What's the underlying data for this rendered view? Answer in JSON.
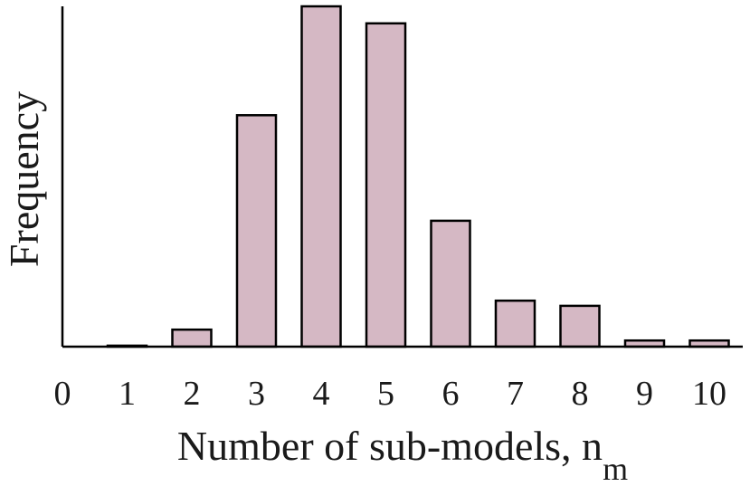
{
  "chart_data": {
    "type": "bar",
    "xlabel": "Number of sub-models, n",
    "xlabel_subscript": "m",
    "ylabel": "Frequency",
    "x_ticks": [
      "0",
      "1",
      "2",
      "3",
      "4",
      "5",
      "6",
      "7",
      "8",
      "9",
      "10"
    ],
    "xlim": [
      0,
      10.5
    ],
    "ylim": [
      0,
      100
    ],
    "y_ticks_shown": false,
    "grid": false,
    "bar_color": "#d5b8c4",
    "bar_edge_color": "#000000",
    "categories": [
      1,
      2,
      3,
      4,
      5,
      6,
      7,
      8,
      9,
      10
    ],
    "values": [
      0.3,
      5,
      68,
      100,
      95,
      37,
      13.5,
      12,
      1.8,
      1.8
    ]
  }
}
